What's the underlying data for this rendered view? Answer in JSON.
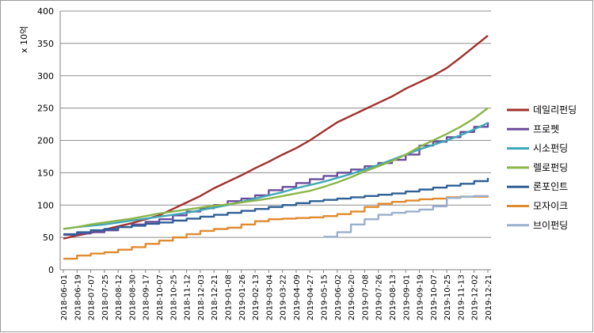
{
  "chart_data": {
    "type": "line",
    "y_unit_label": "x 10억",
    "ylim": [
      0,
      400
    ],
    "yticks": [
      0,
      50,
      100,
      150,
      200,
      250,
      300,
      350,
      400
    ],
    "grid": "horizontal",
    "legend_position": "right",
    "x_tick_labels": [
      "2018-06-01",
      "2018-06-19",
      "2018-07-07",
      "2018-07-25",
      "2018-08-12",
      "2018-08-30",
      "2018-09-17",
      "2018-10-07",
      "2018-10-25",
      "2018-11-12",
      "2018-12-03",
      "2018-12-21",
      "2019-01-08",
      "2019-01-26",
      "2019-02-13",
      "2019-03-04",
      "2019-03-22",
      "2019-04-09",
      "2019-04-27",
      "2019-05-15",
      "2019-06-02",
      "2019-06-20",
      "2019-07-08",
      "2019-07-26",
      "2019-08-13",
      "2019-09-01",
      "2019-09-19",
      "2019-10-07",
      "2019-10-25",
      "2019-11-13",
      "2019-12-02",
      "2019-12-21"
    ],
    "series": [
      {
        "name": "데일리펀딩",
        "color": "#A0302C",
        "step": false,
        "values": [
          48,
          53,
          57,
          62,
          67,
          72,
          78,
          84,
          94,
          104,
          114,
          126,
          136,
          146,
          157,
          167,
          178,
          188,
          200,
          214,
          228,
          238,
          248,
          258,
          268,
          280,
          290,
          300,
          312,
          328,
          345,
          362
        ]
      },
      {
        "name": "프로펫",
        "color": "#6A4C9C",
        "step": true,
        "values": [
          54,
          56,
          58,
          61,
          66,
          70,
          74,
          78,
          84,
          90,
          95,
          100,
          106,
          110,
          115,
          123,
          128,
          134,
          140,
          145,
          150,
          155,
          160,
          165,
          170,
          178,
          192,
          198,
          205,
          213,
          221,
          228
        ]
      },
      {
        "name": "시소펀딩",
        "color": "#3FA8B9",
        "step": false,
        "values": [
          63,
          66,
          68,
          70,
          73,
          76,
          79,
          82,
          85,
          88,
          92,
          96,
          100,
          105,
          110,
          115,
          120,
          126,
          131,
          136,
          142,
          148,
          155,
          162,
          170,
          178,
          186,
          193,
          200,
          208,
          217,
          227
        ]
      },
      {
        "name": "렐로펀딩",
        "color": "#8AB548",
        "step": false,
        "values": [
          63,
          66,
          70,
          73,
          76,
          79,
          83,
          87,
          90,
          93,
          96,
          99,
          101,
          104,
          107,
          110,
          114,
          118,
          122,
          128,
          135,
          143,
          152,
          160,
          168,
          178,
          190,
          200,
          210,
          221,
          234,
          250
        ]
      },
      {
        "name": "론포인트",
        "color": "#2E6096",
        "step": true,
        "values": [
          55,
          58,
          61,
          63,
          66,
          68,
          71,
          73,
          76,
          79,
          82,
          85,
          88,
          91,
          94,
          97,
          100,
          103,
          106,
          108,
          110,
          112,
          114,
          116,
          118,
          121,
          124,
          127,
          130,
          133,
          137,
          142
        ]
      },
      {
        "name": "모자이크",
        "color": "#E08A2F",
        "step": true,
        "values": [
          17,
          22,
          25,
          27,
          31,
          35,
          40,
          45,
          50,
          55,
          60,
          63,
          65,
          70,
          75,
          78,
          79,
          80,
          81,
          83,
          86,
          90,
          97,
          102,
          105,
          107,
          109,
          110,
          112,
          113,
          113,
          114
        ]
      },
      {
        "name": "브이펀딩",
        "color": "#9AAFCD",
        "step": true,
        "start_index": 19,
        "values": [
          51,
          58,
          70,
          78,
          85,
          88,
          90,
          93,
          98,
          111,
          113,
          114,
          115
        ]
      }
    ]
  }
}
